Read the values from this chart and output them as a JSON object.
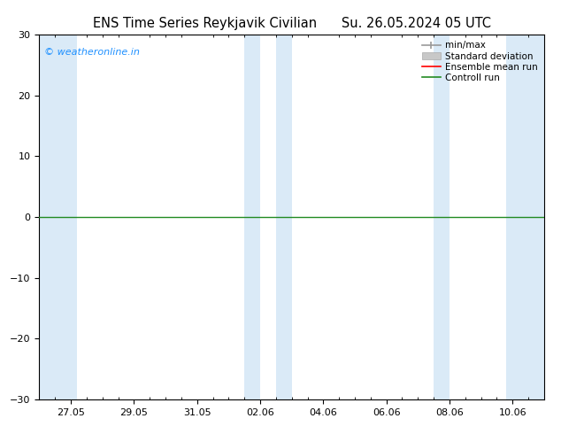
{
  "title_left": "ENS Time Series Reykjavik Civilian",
  "title_right": "Su. 26.05.2024 05 UTC",
  "ylim": [
    -30,
    30
  ],
  "yticks": [
    -30,
    -20,
    -10,
    0,
    10,
    20,
    30
  ],
  "x_tick_labels": [
    "27.05",
    "29.05",
    "31.05",
    "02.06",
    "04.06",
    "06.06",
    "08.06",
    "10.06"
  ],
  "blue_band_color": "#daeaf7",
  "control_run_color": "#228B22",
  "ensemble_mean_color": "#ff0000",
  "std_dev_color": "#c8c8c8",
  "minmax_color": "#999999",
  "watermark": "© weatheronline.in",
  "watermark_color": "#1e90ff",
  "background_color": "#ffffff",
  "legend_labels": [
    "min/max",
    "Standard deviation",
    "Ensemble mean run",
    "Controll run"
  ],
  "legend_colors": [
    "#999999",
    "#c8c8c8",
    "#ff0000",
    "#228B22"
  ],
  "title_fontsize": 10.5,
  "tick_fontsize": 8,
  "legend_fontsize": 7.5
}
